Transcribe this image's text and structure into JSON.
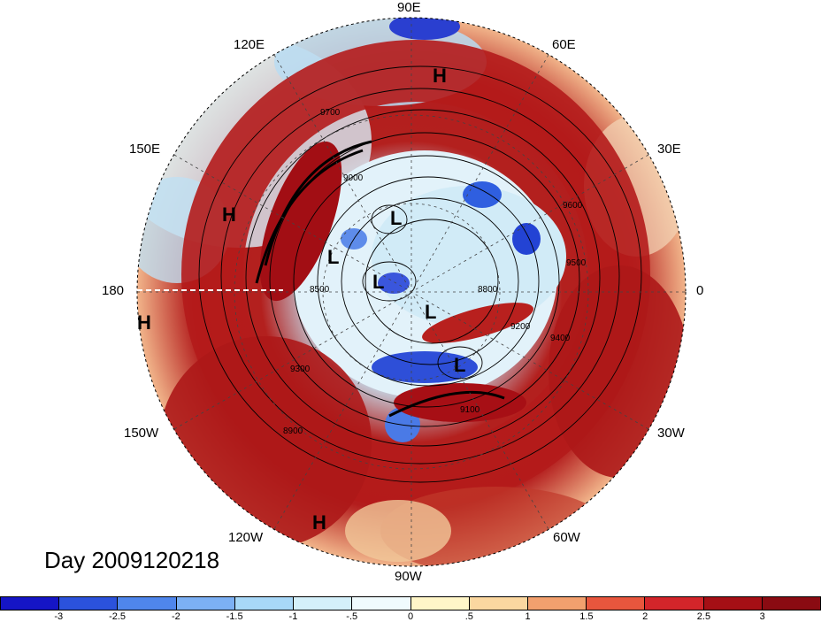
{
  "map": {
    "day_label": "Day 2009120218",
    "lon_labels": {
      "lon_90e": "90E",
      "lon_60e": "60E",
      "lon_120e": "120E",
      "lon_30e": "30E",
      "lon_150e": "150E",
      "lon_0": "0",
      "lon_180": "180",
      "lon_30w": "30W",
      "lon_150w": "150W",
      "lon_60w": "60W",
      "lon_120w": "120W",
      "lon_90w": "90W"
    },
    "pressure_centers": [
      "H",
      "H",
      "H",
      "H",
      "L",
      "L",
      "L",
      "L",
      "L"
    ],
    "contour_labels": [
      "9700",
      "9600",
      "9500",
      "9400",
      "9300",
      "8500",
      "9200",
      "9100",
      "9000",
      "8900",
      "8800"
    ],
    "projection": "north polar stereographic",
    "colors": {
      "strong_positive": "#a50f15",
      "positive": "#e8542f",
      "weak_positive": "#f6c38a",
      "weak_negative": "#bfe6f4",
      "negative": "#4a86e8",
      "strong_negative": "#1b1bc8"
    }
  },
  "colorbar": {
    "ticks": [
      "-3",
      "-2.5",
      "-2",
      "-1.5",
      "-1",
      "-.5",
      "0",
      ".5",
      "1",
      "1.5",
      "2",
      "2.5",
      "3"
    ],
    "colors": [
      "#1515c6",
      "#2b52dc",
      "#4f86ec",
      "#7cb0f4",
      "#a8d8f8",
      "#d4f0fa",
      "#f0fbfd",
      "#fff6c8",
      "#fbd7a0",
      "#f2a06e",
      "#e8563d",
      "#d3252a",
      "#a50f15",
      "#8a0b12"
    ]
  }
}
